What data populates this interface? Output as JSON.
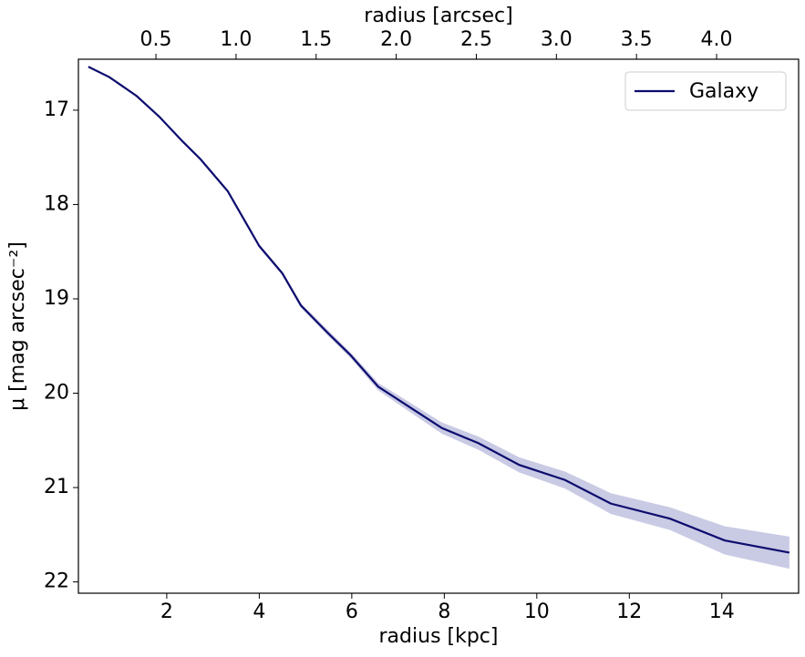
{
  "chart_data": {
    "type": "line",
    "xlabel": "radius [kpc]",
    "x2label": "radius [arcsec]",
    "ylabel": "μ [mag arcsec⁻²]",
    "xlim": [
      0.09,
      15.66
    ],
    "xticks": [
      2,
      4,
      6,
      8,
      10,
      12,
      14
    ],
    "x2lim": [
      0.016,
      4.512
    ],
    "x2ticks": [
      0.5,
      {
        "value": 1.0,
        "label": "1.0"
      },
      1.5,
      {
        "value": 2.0,
        "label": "2.0"
      },
      2.5,
      {
        "value": 3.0,
        "label": "3.0"
      },
      3.5,
      {
        "value": 4.0,
        "label": "4.0"
      }
    ],
    "ylim": [
      22.12,
      16.46
    ],
    "yticks": [
      17,
      18,
      19,
      20,
      21,
      22
    ],
    "legend": "upper right",
    "x": [
      0.305,
      0.76,
      1.35,
      1.55,
      1.84,
      2.34,
      2.73,
      3.32,
      4.0,
      4.5,
      4.9,
      5.48,
      5.98,
      6.57,
      7.26,
      7.95,
      8.74,
      9.62,
      10.61,
      11.6,
      12.88,
      14.06,
      15.46
    ],
    "series": [
      {
        "name": "Galaxy",
        "color": "#0c0c6e",
        "band_color": "#c9cae4",
        "values": [
          16.54,
          16.65,
          16.85,
          16.94,
          17.07,
          17.33,
          17.52,
          17.86,
          18.44,
          18.73,
          19.07,
          19.36,
          19.6,
          19.93,
          20.15,
          20.37,
          20.53,
          20.76,
          20.92,
          21.17,
          21.33,
          21.56,
          21.69
        ],
        "lower": [
          16.53,
          16.64,
          16.84,
          16.93,
          17.06,
          17.32,
          17.505,
          17.845,
          18.42,
          18.71,
          19.045,
          19.33,
          19.57,
          19.89,
          20.1,
          20.31,
          20.46,
          20.68,
          20.83,
          21.06,
          21.21,
          21.41,
          21.52
        ],
        "upper": [
          16.55,
          16.66,
          16.86,
          16.95,
          17.08,
          17.34,
          17.535,
          17.875,
          18.46,
          18.75,
          19.095,
          19.39,
          19.63,
          19.97,
          20.2,
          20.43,
          20.6,
          20.84,
          21.01,
          21.28,
          21.45,
          21.71,
          21.86
        ]
      }
    ]
  }
}
